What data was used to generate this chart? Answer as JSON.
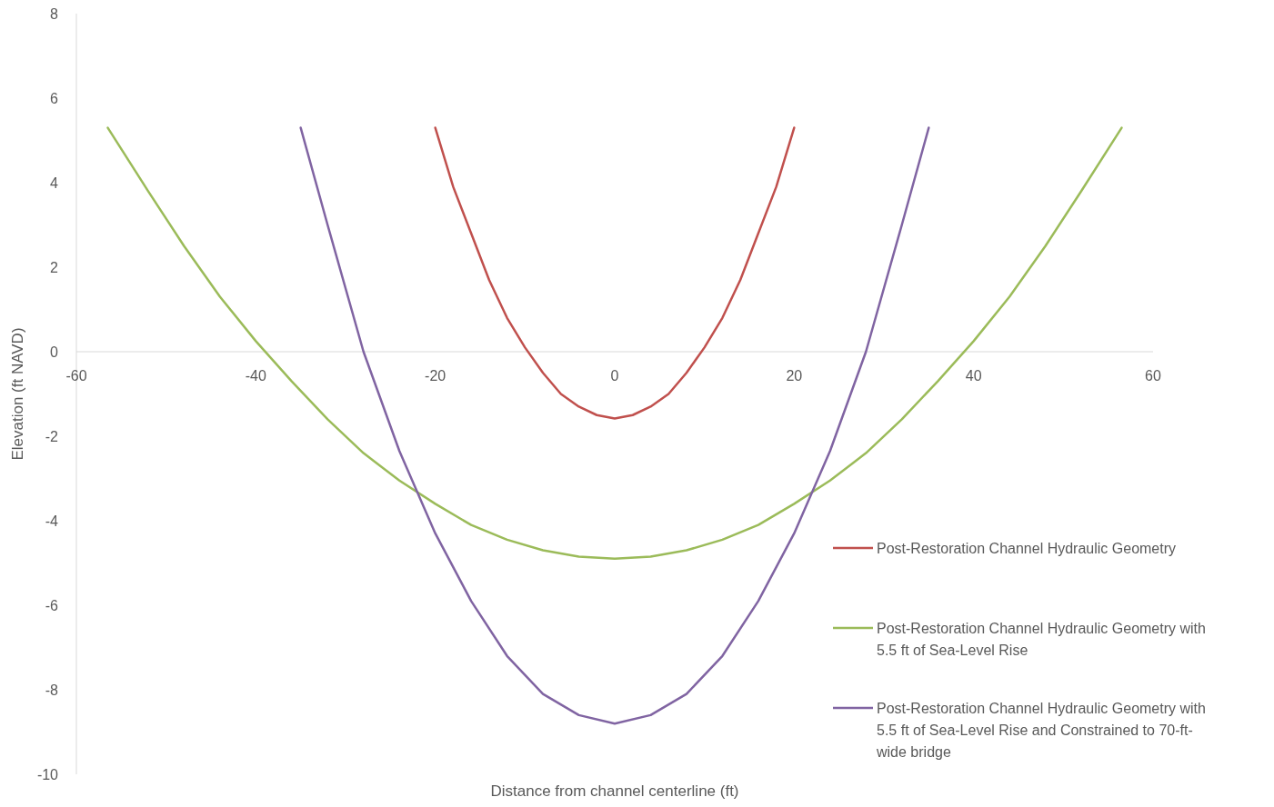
{
  "chart_data": {
    "type": "line",
    "xlabel": "Distance from channel centerline (ft)",
    "ylabel": "Elevation (ft NAVD)",
    "xlim": [
      -60,
      60
    ],
    "ylim": [
      -10,
      8
    ],
    "xticks": [
      -60,
      -40,
      -20,
      0,
      20,
      40,
      60
    ],
    "yticks": [
      -10,
      -8,
      -6,
      -4,
      -2,
      0,
      2,
      4,
      6,
      8
    ],
    "legend": "right",
    "grid": false,
    "marker": "none",
    "line_style": "solid",
    "series": [
      {
        "name": "Post-Restoration Channel Hydraulic Geometry",
        "color": "#c0504d",
        "x": [
          -20,
          -18,
          -16,
          -14,
          -12,
          -10,
          -8,
          -6,
          -4,
          -2,
          0,
          2,
          4,
          6,
          8,
          10,
          12,
          14,
          16,
          18,
          20
        ],
        "values": [
          5.3,
          3.9,
          2.8,
          1.7,
          0.8,
          0.1,
          -0.5,
          -1.0,
          -1.3,
          -1.5,
          -1.58,
          -1.5,
          -1.3,
          -1.0,
          -0.5,
          0.1,
          0.8,
          1.7,
          2.8,
          3.9,
          5.3
        ]
      },
      {
        "name": "Post-Restoration Channel Hydraulic Geometry with 5.5 ft of Sea-Level Rise",
        "color": "#9bbb59",
        "x": [
          -56.5,
          -52,
          -48,
          -44,
          -40,
          -36,
          -32,
          -28,
          -24,
          -20,
          -16,
          -12,
          -8,
          -4,
          0,
          4,
          8,
          12,
          16,
          20,
          24,
          28,
          32,
          36,
          40,
          44,
          48,
          52,
          56.5
        ],
        "values": [
          5.3,
          3.8,
          2.5,
          1.3,
          0.25,
          -0.7,
          -1.6,
          -2.4,
          -3.05,
          -3.6,
          -4.1,
          -4.45,
          -4.7,
          -4.85,
          -4.9,
          -4.85,
          -4.7,
          -4.45,
          -4.1,
          -3.6,
          -3.05,
          -2.4,
          -1.6,
          -0.7,
          0.25,
          1.3,
          2.5,
          3.8,
          5.3
        ]
      },
      {
        "name": "Post-Restoration Channel Hydraulic Geometry with 5.5 ft of Sea-Level Rise and Constrained to 70-ft-wide bridge",
        "color": "#8064a2",
        "x": [
          -35,
          -32,
          -28,
          -24,
          -20,
          -16,
          -12,
          -8,
          -4,
          0,
          4,
          8,
          12,
          16,
          20,
          24,
          28,
          32,
          35
        ],
        "values": [
          5.3,
          3.0,
          0,
          -2.35,
          -4.3,
          -5.9,
          -7.2,
          -8.1,
          -8.6,
          -8.8,
          -8.6,
          -8.1,
          -7.2,
          -5.9,
          -4.3,
          -2.35,
          0,
          3.0,
          5.3
        ]
      }
    ]
  }
}
